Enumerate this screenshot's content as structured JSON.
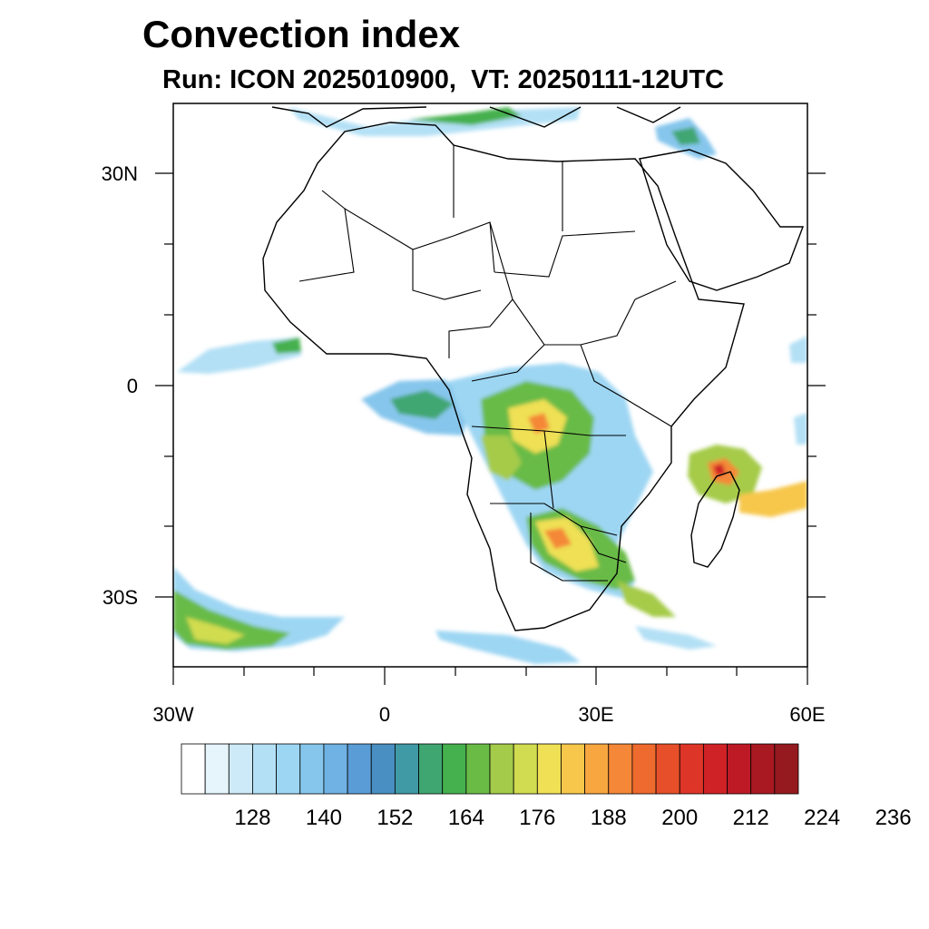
{
  "title": "Convection index",
  "subtitle": "Run: ICON 2025010900,  VT: 20250111-12UTC",
  "lat_labels": [
    "30N",
    "0",
    "30S"
  ],
  "lon_labels": [
    "30W",
    "0",
    "30E",
    "60E"
  ],
  "colorbar": {
    "labels": [
      "128",
      "140",
      "152",
      "164",
      "176",
      "188",
      "200",
      "212",
      "224",
      "236"
    ],
    "colors": [
      "#ffffff",
      "#e6f4fb",
      "#cdeaf8",
      "#b3e0f5",
      "#9dd6f3",
      "#86c6ec",
      "#6fb2e3",
      "#5a9dd6",
      "#4a8fc2",
      "#3f9aa5",
      "#3fa672",
      "#45b04e",
      "#69bb46",
      "#a5cb4a",
      "#d1dc50",
      "#efe055",
      "#f7c74b",
      "#f7a640",
      "#f48838",
      "#ee6a2e",
      "#e64f29",
      "#dd3527",
      "#cf2227",
      "#bd1a25",
      "#a81922",
      "#941a1f"
    ]
  },
  "map": {
    "lon_range": [
      -30,
      60
    ],
    "lat_range": [
      -40,
      40
    ],
    "colors": {
      "coast": "#000000",
      "frame": "#000000"
    }
  }
}
